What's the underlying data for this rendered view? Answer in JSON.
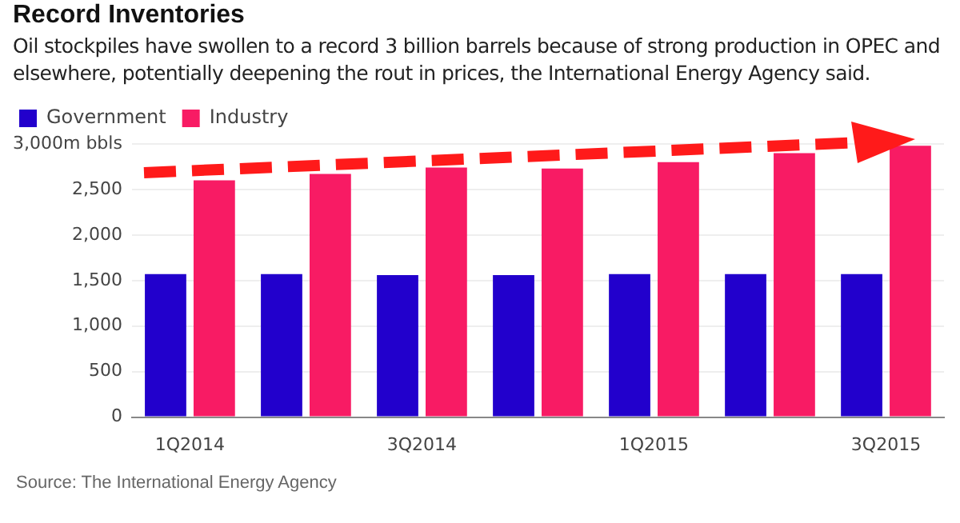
{
  "chart_data": {
    "type": "bar",
    "title": "Record Inventories",
    "subtitle": "Oil stockpiles have swollen to a record 3 billion barrels because of strong production in OPEC and elsewhere, potentially deepening the rout in prices, the International Energy Agency said.",
    "categories": [
      "1Q2014",
      null,
      "3Q2014",
      null,
      "1Q2015",
      null,
      "3Q2015"
    ],
    "series": [
      {
        "name": "Government",
        "color": "#2200cc",
        "values": [
          1570,
          1570,
          1560,
          1560,
          1570,
          1570,
          1570
        ]
      },
      {
        "name": "Industry",
        "color": "#f81b64",
        "values": [
          2600,
          2670,
          2740,
          2730,
          2800,
          2900,
          2980
        ]
      }
    ],
    "ylim": [
      0,
      3000
    ],
    "yticks": [
      0,
      {
        "value": 500,
        "label": "500"
      },
      {
        "value": 1000,
        "label": "1,000"
      },
      {
        "value": 1500,
        "label": "1,500"
      },
      {
        "value": 2000,
        "label": "2,000"
      },
      {
        "value": 2500,
        "label": "2,500"
      },
      {
        "value": 3000,
        "label": "3,000m bbls"
      }
    ],
    "grid": "y",
    "legend": "top left",
    "annotations": [
      "Source: The International Energy Agency"
    ]
  }
}
